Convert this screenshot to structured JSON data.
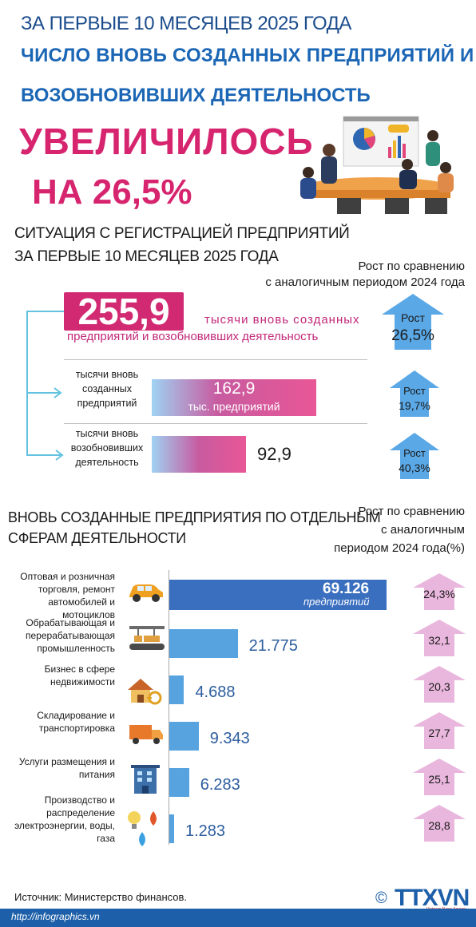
{
  "header": {
    "line1": "ЗА ПЕРВЫЕ 10 МЕСЯЦЕВ 2025 ГОДА",
    "line2": "ЧИСЛО ВНОВЬ СОЗДАННЫХ ПРЕДПРИЯТИЙ И",
    "line3": "ВОЗОБНОВИВШИХ ДЕЯТЕЛЬНОСТЬ",
    "big": "УВЕЛИЧИЛОСЬ",
    "pct": "НА 26,5%"
  },
  "section1": {
    "title_line1": "СИТУАЦИЯ С РЕГИСТРАЦИЕЙ ПРЕДПРИЯТИЙ",
    "title_line2": "ЗА ПЕРВЫЕ 10 МЕСЯЦЕВ 2025 ГОДА",
    "growth_header_line1": "Рост по сравнению",
    "growth_header_line2": "с аналогичным периодом 2024 года",
    "total_value": "255,9",
    "total_text_line1": "тысячи вновь созданных",
    "total_text_line2": "предприятий и возобновивших деятельность",
    "total_growth_label": "Рост",
    "total_growth_value": "26,5%",
    "new_label": "тысячи вновь созданных предприятий",
    "new_value": "162,9",
    "new_unit": "тыс. предприятий",
    "new_growth_label": "Рост",
    "new_growth_value": "19,7%",
    "resumed_label": "тысячи вновь возобновивших деятельность",
    "resumed_value": "92,9",
    "resumed_growth_label": "Рост",
    "resumed_growth_value": "40,3%"
  },
  "section2": {
    "title_line1": "ВНОВЬ СОЗДАННЫЕ ПРЕДПРИЯТИЯ ПО ОТДЕЛЬНЫМ",
    "title_line2": "СФЕРАМ ДЕЯТЕЛЬНОСТИ",
    "growth_header_line1": "Рост по сравнению",
    "growth_header_line2": "с аналогичным",
    "growth_header_line3": "периодом 2024 года(%)",
    "first_bar_unit": "предприятий"
  },
  "chart_data": [
    {
      "type": "bar",
      "categories": [
        "тысячи вновь созданных предприятий",
        "тысячи вновь возобновивших деятельность"
      ],
      "values": [
        162.9,
        92.9
      ],
      "growth": [
        "19,7%",
        "40,3%"
      ]
    },
    {
      "type": "bar",
      "categories": [
        "Оптовая и розничная торговля, ремонт автомобилей и мотоциклов",
        "Обрабатывающая и перерабатывающая промышленность",
        "Бизнес в сфере недвижимости",
        "Складирование и транспортировка",
        "Услуги размещения и питания",
        "Производство и распределение электроэнергии, воды, газа"
      ],
      "values": [
        69126,
        21775,
        4688,
        9343,
        6283,
        1283
      ],
      "value_labels": [
        "69.126",
        "21.775",
        "4.688",
        "9.343",
        "6.283",
        "1.283"
      ],
      "growth": [
        "24,3%",
        "32,1",
        "20,3",
        "27,7",
        "25,1",
        "28,8"
      ]
    }
  ],
  "footer": {
    "source": "Источник: Министерство финансов.",
    "url": "http://infographics.vn",
    "copyright": "©",
    "logo": "TTXVN",
    "logo_sub": "Vietnam News Agency"
  },
  "colors": {
    "title_blue": "#1b66b5",
    "accent_pink": "#d6246e",
    "bar_blue_dark": "#3a6fbf",
    "bar_blue": "#56a3e0",
    "arrow_blue": "#5aa8e6",
    "arrow_pink": "#e9b7dd"
  }
}
